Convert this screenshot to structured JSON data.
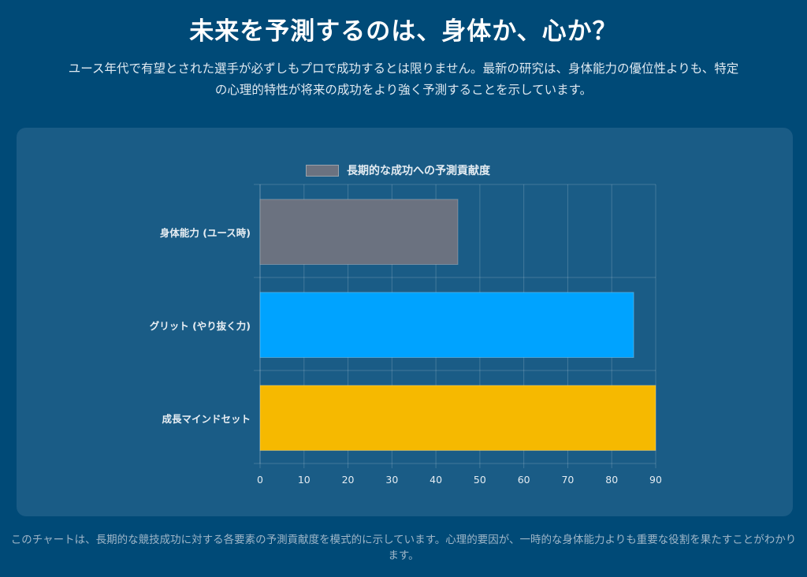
{
  "header": {
    "title": "未来を予測するのは、身体か、心か？",
    "subtitle": "ユース年代で有望とされた選手が必ずしもプロで成功するとは限りません。最新の研究は、身体能力の優位性よりも、特定の心理的特性が将来の成功をより強く予測することを示しています。"
  },
  "chart_data": {
    "type": "bar",
    "orientation": "horizontal",
    "categories": [
      "身体能力 (ユース時)",
      "グリット (やり抜く力)",
      "成長マインドセット"
    ],
    "series": [
      {
        "name": "長期的な成功への予測貢献度",
        "values": [
          45,
          85,
          90
        ],
        "colors": [
          "#6b7280",
          "#00a3ff",
          "#f6b900"
        ]
      }
    ],
    "xlim": [
      0,
      90
    ],
    "x_ticks": [
      0,
      10,
      20,
      30,
      40,
      50,
      60,
      70,
      80,
      90
    ],
    "legend_position": "top",
    "grid": true
  },
  "footnote": "このチャートは、長期的な競技成功に対する各要素の予測貢献度を模式的に示しています。心理的要因が、一時的な身体能力よりも重要な役割を果たすことがわかります。"
}
